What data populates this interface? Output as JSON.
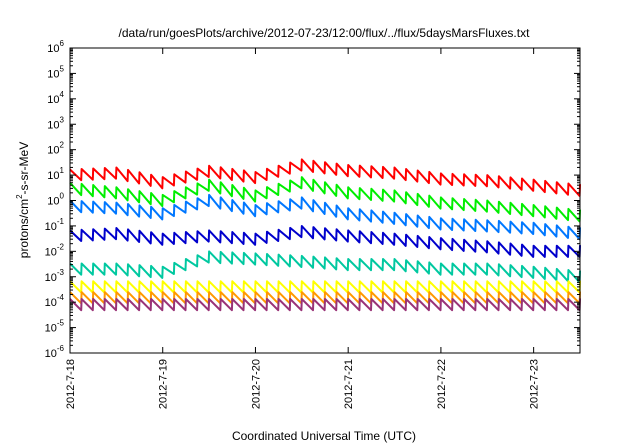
{
  "chart_data": {
    "type": "line",
    "title": "/data/run/goesPlots/archive/2012-07-23/12:00/flux/../flux/5daysMarsFluxes.txt",
    "xlabel": "Coordinated Universal Time (UTC)",
    "ylabel_parts": [
      "protons/cm",
      "2",
      "-s-sr-MeV"
    ],
    "yscale": "log",
    "ylim": [
      1e-06,
      1000000.0
    ],
    "y_ticks": [
      {
        "base": "10",
        "exp": "-6"
      },
      {
        "base": "10",
        "exp": "-5"
      },
      {
        "base": "10",
        "exp": "-4"
      },
      {
        "base": "10",
        "exp": "-3"
      },
      {
        "base": "10",
        "exp": "-2"
      },
      {
        "base": "10",
        "exp": "-1"
      },
      {
        "base": "10",
        "exp": "0"
      },
      {
        "base": "10",
        "exp": "1"
      },
      {
        "base": "10",
        "exp": "2"
      },
      {
        "base": "10",
        "exp": "3"
      },
      {
        "base": "10",
        "exp": "4"
      },
      {
        "base": "10",
        "exp": "5"
      },
      {
        "base": "10",
        "exp": "6"
      }
    ],
    "xlim": [
      "2012-07-18",
      "2012-07-23T12:00"
    ],
    "x_ticks": [
      "2012-7-18",
      "2012-7-19",
      "2012-7-20",
      "2012-7-21",
      "2012-7-22",
      "2012-7-23"
    ],
    "series": [
      {
        "color": "#ff0000",
        "points": [
          [
            "2012-07-18",
            10
          ],
          [
            "2012-07-18T12:00",
            12
          ],
          [
            "2012-07-19",
            5
          ],
          [
            "2012-07-19T12:00",
            14
          ],
          [
            "2012-07-20",
            8
          ],
          [
            "2012-07-20T12:00",
            25
          ],
          [
            "2012-07-21",
            15
          ],
          [
            "2012-07-21T12:00",
            12
          ],
          [
            "2012-07-22",
            7
          ],
          [
            "2012-07-22T12:00",
            6
          ],
          [
            "2012-07-23",
            4
          ],
          [
            "2012-07-23T12:00",
            2.5
          ]
        ]
      },
      {
        "color": "#00ee00",
        "points": [
          [
            "2012-07-18",
            3
          ],
          [
            "2012-07-18T12:00",
            2
          ],
          [
            "2012-07-19",
            1
          ],
          [
            "2012-07-19T12:00",
            4
          ],
          [
            "2012-07-20",
            1.5
          ],
          [
            "2012-07-20T12:00",
            5
          ],
          [
            "2012-07-21",
            2
          ],
          [
            "2012-07-21T12:00",
            1.5
          ],
          [
            "2012-07-22",
            0.8
          ],
          [
            "2012-07-22T12:00",
            0.6
          ],
          [
            "2012-07-23",
            0.4
          ],
          [
            "2012-07-23T12:00",
            0.25
          ]
        ]
      },
      {
        "color": "#0077ff",
        "points": [
          [
            "2012-07-18",
            0.6
          ],
          [
            "2012-07-18T12:00",
            0.5
          ],
          [
            "2012-07-19",
            0.3
          ],
          [
            "2012-07-19T12:00",
            1
          ],
          [
            "2012-07-20",
            0.4
          ],
          [
            "2012-07-20T12:00",
            0.8
          ],
          [
            "2012-07-21",
            0.3
          ],
          [
            "2012-07-21T12:00",
            0.2
          ],
          [
            "2012-07-22",
            0.12
          ],
          [
            "2012-07-22T12:00",
            0.1
          ],
          [
            "2012-07-23",
            0.08
          ],
          [
            "2012-07-23T12:00",
            0.05
          ]
        ]
      },
      {
        "color": "#0000cc",
        "points": [
          [
            "2012-07-18",
            0.04
          ],
          [
            "2012-07-18T12:00",
            0.05
          ],
          [
            "2012-07-19",
            0.03
          ],
          [
            "2012-07-19T12:00",
            0.04
          ],
          [
            "2012-07-20",
            0.03
          ],
          [
            "2012-07-20T12:00",
            0.06
          ],
          [
            "2012-07-21",
            0.04
          ],
          [
            "2012-07-21T12:00",
            0.03
          ],
          [
            "2012-07-22",
            0.02
          ],
          [
            "2012-07-22T12:00",
            0.015
          ],
          [
            "2012-07-23",
            0.01
          ],
          [
            "2012-07-23T12:00",
            0.01
          ]
        ]
      },
      {
        "color": "#00c8a0",
        "points": [
          [
            "2012-07-18",
            0.002
          ],
          [
            "2012-07-18T12:00",
            0.002
          ],
          [
            "2012-07-19",
            0.0015
          ],
          [
            "2012-07-19T12:00",
            0.006
          ],
          [
            "2012-07-20",
            0.005
          ],
          [
            "2012-07-20T12:00",
            0.004
          ],
          [
            "2012-07-21",
            0.003
          ],
          [
            "2012-07-21T12:00",
            0.003
          ],
          [
            "2012-07-22",
            0.002
          ],
          [
            "2012-07-22T12:00",
            0.002
          ],
          [
            "2012-07-23",
            0.0015
          ],
          [
            "2012-07-23T12:00",
            0.001
          ]
        ]
      },
      {
        "color": "#ffff00",
        "points": [
          [
            "2012-07-18",
            0.0004
          ],
          [
            "2012-07-18T12:00",
            0.0004
          ],
          [
            "2012-07-19",
            0.0004
          ],
          [
            "2012-07-19T12:00",
            0.0004
          ],
          [
            "2012-07-20",
            0.0004
          ],
          [
            "2012-07-20T12:00",
            0.0004
          ],
          [
            "2012-07-21",
            0.0004
          ],
          [
            "2012-07-21T12:00",
            0.0004
          ],
          [
            "2012-07-22",
            0.0004
          ],
          [
            "2012-07-22T12:00",
            0.0004
          ],
          [
            "2012-07-23",
            0.0004
          ],
          [
            "2012-07-23T12:00",
            0.0004
          ]
        ]
      },
      {
        "color": "#ff9900",
        "points": [
          [
            "2012-07-18",
            0.00015
          ],
          [
            "2012-07-18T12:00",
            0.00015
          ],
          [
            "2012-07-19",
            0.00015
          ],
          [
            "2012-07-19T12:00",
            0.00015
          ],
          [
            "2012-07-20",
            0.00015
          ],
          [
            "2012-07-20T12:00",
            0.00015
          ],
          [
            "2012-07-21",
            0.00015
          ],
          [
            "2012-07-21T12:00",
            0.00015
          ],
          [
            "2012-07-22",
            0.00015
          ],
          [
            "2012-07-22T12:00",
            0.00015
          ],
          [
            "2012-07-23",
            0.00015
          ],
          [
            "2012-07-23T12:00",
            0.00015
          ]
        ]
      },
      {
        "color": "#993377",
        "points": [
          [
            "2012-07-18",
            8e-05
          ],
          [
            "2012-07-18T12:00",
            8e-05
          ],
          [
            "2012-07-19",
            8e-05
          ],
          [
            "2012-07-19T12:00",
            8e-05
          ],
          [
            "2012-07-20",
            8e-05
          ],
          [
            "2012-07-20T12:00",
            8e-05
          ],
          [
            "2012-07-21",
            8e-05
          ],
          [
            "2012-07-21T12:00",
            8e-05
          ],
          [
            "2012-07-22",
            8e-05
          ],
          [
            "2012-07-22T12:00",
            8e-05
          ],
          [
            "2012-07-23",
            8e-05
          ],
          [
            "2012-07-23T12:00",
            8e-05
          ]
        ]
      }
    ]
  }
}
